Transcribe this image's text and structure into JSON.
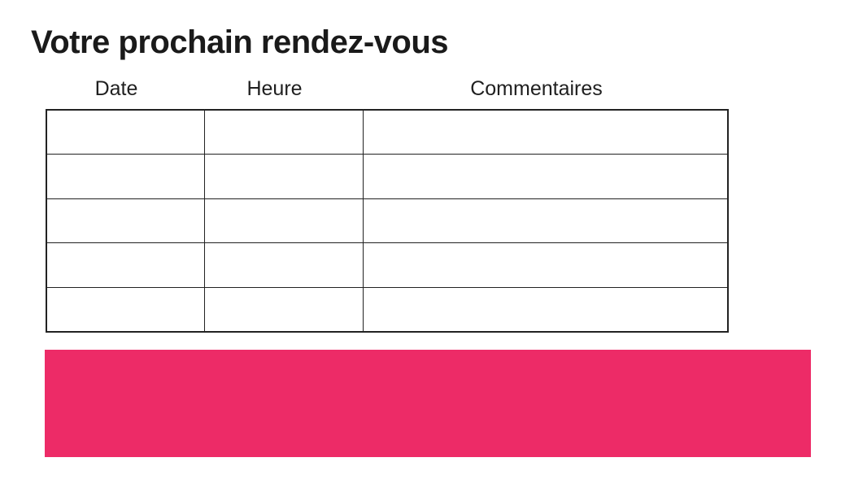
{
  "page": {
    "title": "Votre prochain rendez-vous"
  },
  "table": {
    "columns": [
      {
        "id": "date",
        "label": "Date"
      },
      {
        "id": "heure",
        "label": "Heure"
      },
      {
        "id": "commentaires",
        "label": "Commentaires"
      }
    ],
    "rows": [
      [
        "",
        "",
        ""
      ],
      [
        "",
        "",
        ""
      ],
      [
        "",
        "",
        ""
      ],
      [
        "",
        "",
        ""
      ],
      [
        "",
        "",
        ""
      ]
    ]
  },
  "banner": {
    "text": ""
  },
  "colors": {
    "accent_pink": "#ED2B67",
    "border": "#222222",
    "text": "#1a1a1a"
  }
}
